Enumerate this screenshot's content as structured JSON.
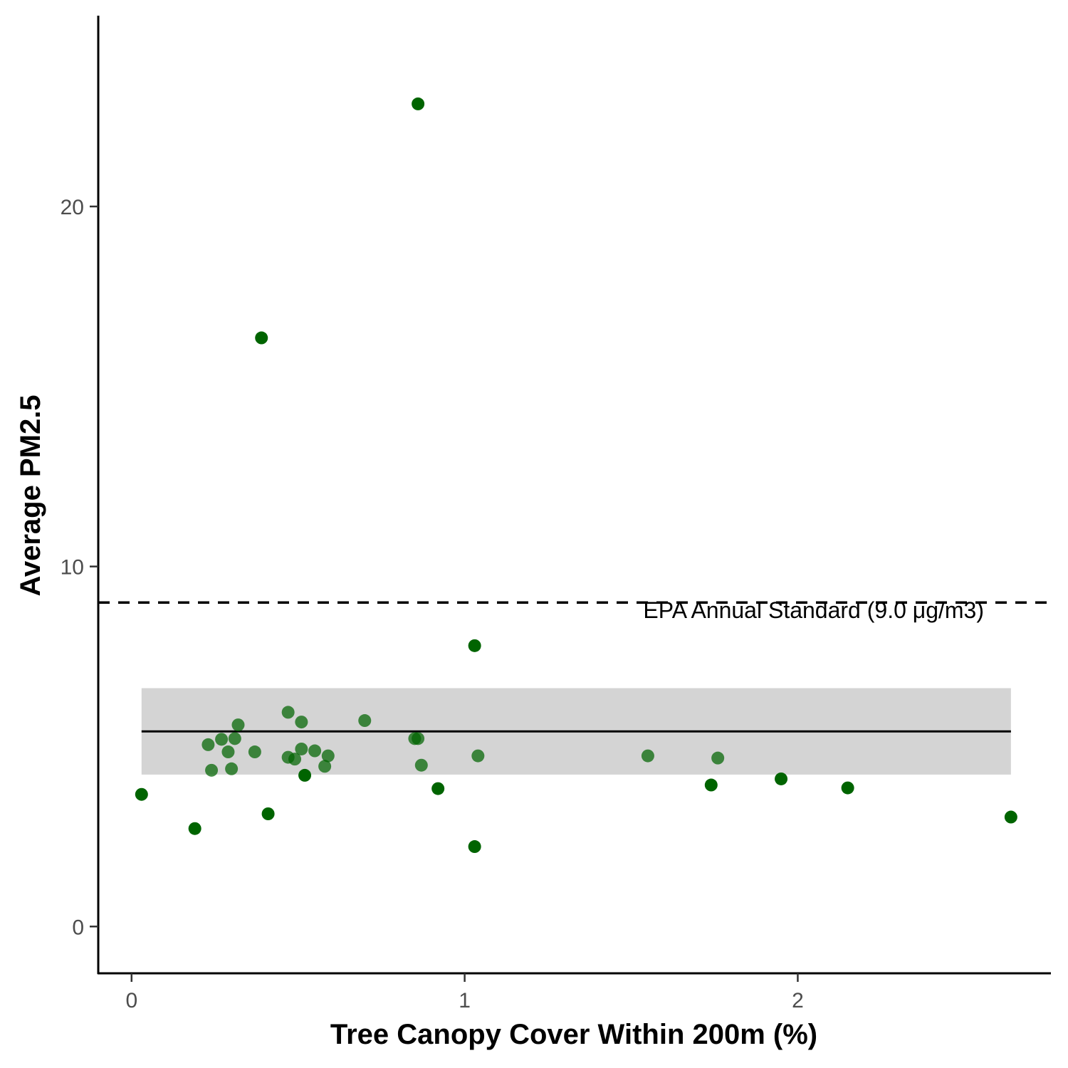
{
  "chart_data": {
    "type": "scatter",
    "title": "",
    "xlabel": "Tree Canopy Cover Within 200m (%)",
    "ylabel": "Average PM2.5",
    "xlim": [
      -0.1,
      2.76
    ],
    "ylim": [
      -1.3,
      25.3
    ],
    "x_ticks": [
      0,
      1,
      2
    ],
    "x_tick_labels": [
      "0",
      "1",
      "2"
    ],
    "y_ticks": [
      0,
      10,
      20
    ],
    "y_tick_labels": [
      "0",
      "10",
      "20"
    ],
    "grid": false,
    "legend": "none",
    "point_color": "#006400",
    "reference_line": {
      "y": 9.0,
      "style": "dashed",
      "label": "EPA Annual Standard (9.0 μg/m3)"
    },
    "fit": {
      "x_range": [
        0.03,
        2.64
      ],
      "y": 5.42,
      "band": [
        4.22,
        6.62
      ],
      "line_color": "#000000",
      "band_color": "#d4d4d4"
    },
    "points": [
      {
        "x": 0.03,
        "y": 3.67
      },
      {
        "x": 0.19,
        "y": 2.72
      },
      {
        "x": 0.23,
        "y": 5.05
      },
      {
        "x": 0.24,
        "y": 4.34
      },
      {
        "x": 0.27,
        "y": 5.2
      },
      {
        "x": 0.29,
        "y": 4.85
      },
      {
        "x": 0.3,
        "y": 4.38
      },
      {
        "x": 0.31,
        "y": 5.22
      },
      {
        "x": 0.32,
        "y": 5.6
      },
      {
        "x": 0.37,
        "y": 4.85
      },
      {
        "x": 0.39,
        "y": 16.35
      },
      {
        "x": 0.41,
        "y": 3.13
      },
      {
        "x": 0.47,
        "y": 5.95
      },
      {
        "x": 0.47,
        "y": 4.7
      },
      {
        "x": 0.49,
        "y": 4.65
      },
      {
        "x": 0.51,
        "y": 5.68
      },
      {
        "x": 0.51,
        "y": 4.93
      },
      {
        "x": 0.52,
        "y": 4.2
      },
      {
        "x": 0.55,
        "y": 4.88
      },
      {
        "x": 0.58,
        "y": 4.45
      },
      {
        "x": 0.59,
        "y": 4.74
      },
      {
        "x": 0.7,
        "y": 5.72
      },
      {
        "x": 0.85,
        "y": 5.22
      },
      {
        "x": 0.86,
        "y": 22.85
      },
      {
        "x": 0.86,
        "y": 5.22
      },
      {
        "x": 0.87,
        "y": 4.48
      },
      {
        "x": 0.92,
        "y": 3.83
      },
      {
        "x": 1.03,
        "y": 7.8
      },
      {
        "x": 1.03,
        "y": 2.22
      },
      {
        "x": 1.04,
        "y": 4.74
      },
      {
        "x": 1.55,
        "y": 4.74
      },
      {
        "x": 1.74,
        "y": 3.93
      },
      {
        "x": 1.76,
        "y": 4.68
      },
      {
        "x": 1.95,
        "y": 4.1
      },
      {
        "x": 2.15,
        "y": 3.85
      },
      {
        "x": 2.64,
        "y": 3.04
      }
    ]
  }
}
